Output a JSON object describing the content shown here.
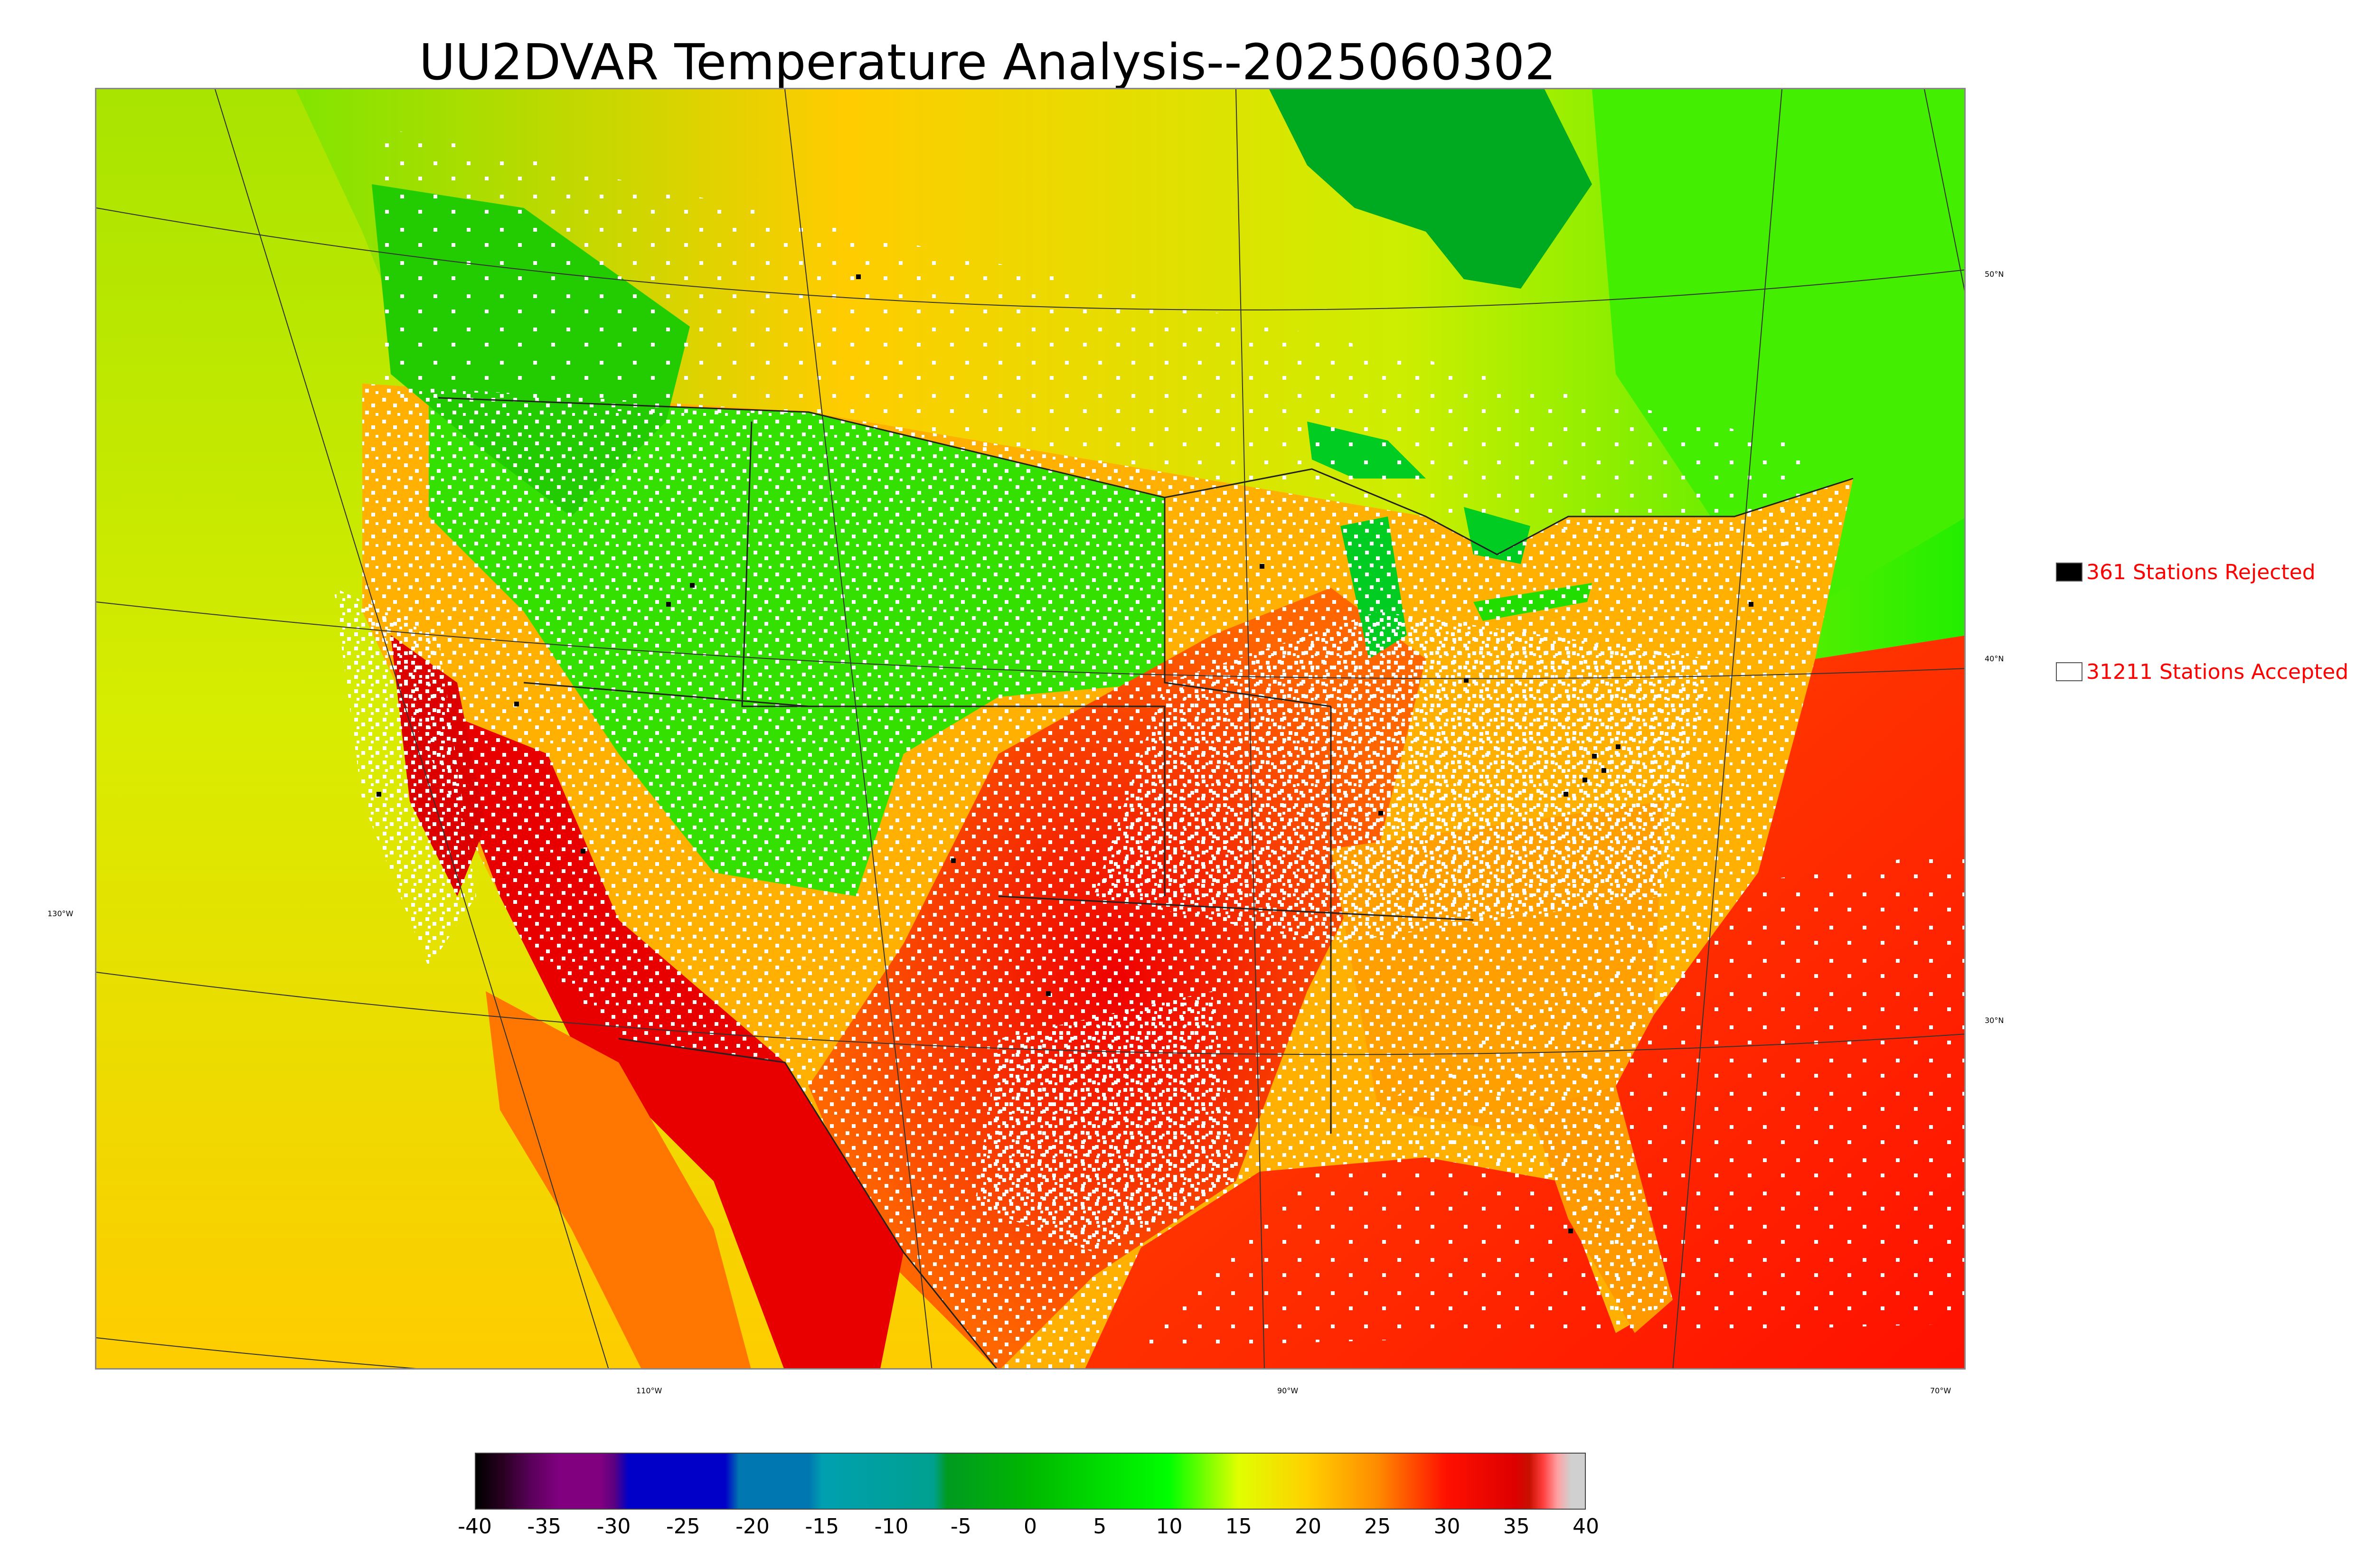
{
  "title": "UU2DVAR Temperature Analysis--2025060302",
  "longitude_labels": [
    "130°W",
    "110°W",
    "90°W",
    "70°W"
  ],
  "latitude_labels": [
    "50°N",
    "40°N",
    "30°N"
  ],
  "legend": {
    "rejected": {
      "count_text": "361 Stations Rejected",
      "color": "#000000"
    },
    "accepted": {
      "count_text": "31211 Stations Accepted",
      "color": "#ffffff"
    }
  },
  "colorbar": {
    "min": -40,
    "max": 40,
    "tick_labels": [
      "-40",
      "-35",
      "-30",
      "-25",
      "-20",
      "-15",
      "-10",
      "-5",
      "0",
      "5",
      "10",
      "15",
      "20",
      "25",
      "30",
      "35",
      "40"
    ],
    "tick_values": [
      -40,
      -35,
      -30,
      -25,
      -20,
      -15,
      -10,
      -5,
      0,
      5,
      10,
      15,
      20,
      25,
      30,
      35,
      40
    ],
    "stops": [
      {
        "v": -40,
        "c": "#000000"
      },
      {
        "v": -38,
        "c": "#2a0022"
      },
      {
        "v": -36,
        "c": "#5a005a"
      },
      {
        "v": -34,
        "c": "#800080"
      },
      {
        "v": -31,
        "c": "#800080"
      },
      {
        "v": -30,
        "c": "#5a0080"
      },
      {
        "v": -29,
        "c": "#0000c8"
      },
      {
        "v": -22,
        "c": "#0000c8"
      },
      {
        "v": -21,
        "c": "#0077b0"
      },
      {
        "v": -16,
        "c": "#0077b0"
      },
      {
        "v": -15,
        "c": "#00a0b0"
      },
      {
        "v": -7,
        "c": "#00a090"
      },
      {
        "v": -6,
        "c": "#009a20"
      },
      {
        "v": 0,
        "c": "#00b800"
      },
      {
        "v": 10,
        "c": "#00ff00"
      },
      {
        "v": 15,
        "c": "#e0ff00"
      },
      {
        "v": 20,
        "c": "#ffd000"
      },
      {
        "v": 25,
        "c": "#ff8c00"
      },
      {
        "v": 30,
        "c": "#ff1000"
      },
      {
        "v": 35,
        "c": "#dd0000"
      },
      {
        "v": 36,
        "c": "#c81000"
      },
      {
        "v": 37,
        "c": "#ff4040"
      },
      {
        "v": 38,
        "c": "#ffa0a0"
      },
      {
        "v": 39,
        "c": "#d0d0d0"
      },
      {
        "v": 40,
        "c": "#d0d0d0"
      }
    ]
  },
  "colors": {
    "ocean_pacific": "#d4ea00",
    "ocean_gulf": "#ff2000",
    "canada_cool": "#33ee00",
    "hudson_bay": "#00aa20",
    "great_lakes": "#00cc22",
    "hot_south": "#ee1100",
    "warm_central": "#ff8800",
    "station_accepted": "#ffffff",
    "station_rejected": "#000000"
  }
}
